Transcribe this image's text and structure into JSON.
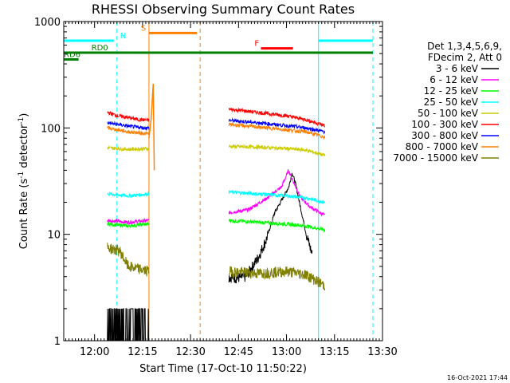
{
  "chart_data": {
    "type": "line",
    "title": "RHESSI Observing Summary Count Rates",
    "xlabel": "Start Time (17-Oct-10 11:50:22)",
    "ylabel_parts": [
      "Count Rate (s",
      "-1",
      " detector",
      "-1",
      ")"
    ],
    "y_scale": "log",
    "ylim": [
      1,
      1000
    ],
    "y_ticks": [
      {
        "value": 1,
        "label": "1"
      },
      {
        "value": 10,
        "label": "10"
      },
      {
        "value": 100,
        "label": "100"
      },
      {
        "value": 1000,
        "label": "1000"
      }
    ],
    "xlim": [
      "11:50:22",
      "13:30:00"
    ],
    "x_ticks": [
      {
        "t": "12:00",
        "label": "12:00"
      },
      {
        "t": "12:15",
        "label": "12:15"
      },
      {
        "t": "12:30",
        "label": "12:30"
      },
      {
        "t": "12:45",
        "label": "12:45"
      },
      {
        "t": "13:00",
        "label": "13:00"
      },
      {
        "t": "13:15",
        "label": "13:15"
      },
      {
        "t": "13:30",
        "label": "13:30"
      }
    ],
    "legend_header": [
      "Det 1,3,4,5,6,9,",
      "FDecim 2, Att 0"
    ],
    "legend_position": "right",
    "series": [
      {
        "name": "3 - 6 keV",
        "color": "#000000",
        "segments": [
          {
            "t0": "12:04",
            "t1": "12:17",
            "points": [
              [
                0,
                2
              ],
              [
                1,
                2
              ]
            ]
          },
          {
            "t0": "12:42",
            "t1": "13:08",
            "points": [
              [
                0,
                4
              ],
              [
                0.1,
                3.9
              ],
              [
                0.2,
                4
              ],
              [
                0.35,
                6
              ],
              [
                0.45,
                9
              ],
              [
                0.55,
                16
              ],
              [
                0.65,
                22
              ],
              [
                0.72,
                28
              ],
              [
                0.76,
                38
              ],
              [
                0.8,
                30
              ],
              [
                0.86,
                18
              ],
              [
                0.93,
                10
              ],
              [
                1,
                6.5
              ]
            ]
          }
        ]
      },
      {
        "name": "6 - 12 keV",
        "color": "#ff00ff",
        "segments": [
          {
            "t0": "12:04",
            "t1": "12:17",
            "points": [
              [
                0,
                13.5
              ],
              [
                0.5,
                13
              ],
              [
                1,
                13.5
              ]
            ]
          },
          {
            "t0": "12:42",
            "t1": "13:12",
            "points": [
              [
                0,
                16
              ],
              [
                0.2,
                17
              ],
              [
                0.4,
                22
              ],
              [
                0.55,
                28
              ],
              [
                0.62,
                40
              ],
              [
                0.68,
                30
              ],
              [
                0.75,
                22
              ],
              [
                0.85,
                18
              ],
              [
                1,
                15
              ]
            ]
          }
        ]
      },
      {
        "name": "12 - 25 keV",
        "color": "#00ff00",
        "segments": [
          {
            "t0": "12:04",
            "t1": "12:17",
            "points": [
              [
                0,
                12.5
              ],
              [
                0.5,
                12
              ],
              [
                1,
                12.5
              ]
            ]
          },
          {
            "t0": "12:42",
            "t1": "13:12",
            "points": [
              [
                0,
                13.5
              ],
              [
                0.3,
                13
              ],
              [
                0.6,
                12.5
              ],
              [
                0.8,
                12
              ],
              [
                1,
                11
              ]
            ]
          }
        ]
      },
      {
        "name": "25 - 50 keV",
        "color": "#00ffff",
        "segments": [
          {
            "t0": "12:04",
            "t1": "12:17",
            "points": [
              [
                0,
                24
              ],
              [
                0.5,
                23
              ],
              [
                1,
                24
              ]
            ]
          },
          {
            "t0": "12:42",
            "t1": "13:12",
            "points": [
              [
                0,
                25
              ],
              [
                0.3,
                24
              ],
              [
                0.6,
                23
              ],
              [
                0.8,
                22
              ],
              [
                1,
                20
              ]
            ]
          }
        ]
      },
      {
        "name": "50 - 100 keV",
        "color": "#cccc00",
        "segments": [
          {
            "t0": "12:04",
            "t1": "12:17",
            "points": [
              [
                0,
                65
              ],
              [
                0.5,
                63
              ],
              [
                1,
                64
              ]
            ]
          },
          {
            "t0": "12:42",
            "t1": "13:12",
            "points": [
              [
                0,
                67
              ],
              [
                0.3,
                66
              ],
              [
                0.6,
                64
              ],
              [
                0.8,
                62
              ],
              [
                1,
                55
              ]
            ]
          }
        ]
      },
      {
        "name": "100 - 300 keV",
        "color": "#ff0000",
        "segments": [
          {
            "t0": "12:04",
            "t1": "12:17",
            "points": [
              [
                0,
                140
              ],
              [
                0.25,
                130
              ],
              [
                0.5,
                125
              ],
              [
                0.75,
                120
              ],
              [
                1,
                118
              ]
            ]
          },
          {
            "t0": "12:42",
            "t1": "13:12",
            "points": [
              [
                0,
                150
              ],
              [
                0.3,
                140
              ],
              [
                0.6,
                130
              ],
              [
                0.8,
                120
              ],
              [
                1,
                105
              ]
            ]
          }
        ]
      },
      {
        "name": "300 - 800 keV",
        "color": "#0000ff",
        "segments": [
          {
            "t0": "12:04",
            "t1": "12:17",
            "points": [
              [
                0,
                112
              ],
              [
                0.25,
                108
              ],
              [
                0.5,
                104
              ],
              [
                0.75,
                101
              ],
              [
                1,
                100
              ]
            ]
          },
          {
            "t0": "12:42",
            "t1": "13:12",
            "points": [
              [
                0,
                118
              ],
              [
                0.3,
                112
              ],
              [
                0.6,
                105
              ],
              [
                0.8,
                100
              ],
              [
                1,
                92
              ]
            ]
          }
        ]
      },
      {
        "name": "800 - 7000 keV",
        "color": "#ff8000",
        "segments": [
          {
            "t0": "12:04",
            "t1": "12:17",
            "points": [
              [
                0,
                100
              ],
              [
                0.25,
                96
              ],
              [
                0.5,
                92
              ],
              [
                0.75,
                90
              ],
              [
                1,
                88
              ]
            ]
          },
          {
            "t0": "12:42",
            "t1": "13:12",
            "points": [
              [
                0,
                108
              ],
              [
                0.3,
                102
              ],
              [
                0.6,
                96
              ],
              [
                0.8,
                92
              ],
              [
                1,
                82
              ]
            ]
          }
        ]
      },
      {
        "name": "7000 - 15000 keV",
        "color": "#808000",
        "segments": [
          {
            "t0": "12:04",
            "t1": "12:17",
            "points": [
              [
                0,
                7.5
              ],
              [
                0.3,
                7
              ],
              [
                0.5,
                5
              ],
              [
                1,
                4.5
              ]
            ]
          },
          {
            "t0": "12:42",
            "t1": "13:12",
            "points": [
              [
                0,
                4.5
              ],
              [
                0.3,
                4.3
              ],
              [
                0.6,
                4.5
              ],
              [
                0.8,
                4.2
              ],
              [
                1,
                3.3
              ]
            ]
          }
        ]
      }
    ],
    "orange_spike": {
      "color": "#ff8000",
      "points": [
        [
          "12:17",
          80
        ],
        [
          "12:17:40",
          120
        ],
        [
          "12:18:20",
          260
        ],
        [
          "12:18:40",
          40
        ]
      ]
    },
    "vertical_lines": [
      {
        "t": "11:50:22",
        "color": "#00ffff",
        "style": "solid"
      },
      {
        "t": "12:07",
        "color": "#00ffff",
        "style": "dashed"
      },
      {
        "t": "12:17",
        "color": "#ff8000",
        "style": "solid"
      },
      {
        "t": "12:33",
        "color": "#ff8000",
        "style": "dashed"
      },
      {
        "t": "13:10",
        "color": "#00ffff",
        "style": "solid"
      },
      {
        "t": "13:27",
        "color": "#00ffff",
        "style": "dashed"
      }
    ],
    "flag_bars": [
      {
        "label": "N",
        "color": "#00ffff",
        "t0": "11:50:22",
        "t1": "12:06",
        "level": 660,
        "label_t": "12:08"
      },
      {
        "label": "",
        "color": "#00ffff",
        "t0": "13:10",
        "t1": "13:27",
        "level": 660,
        "label_t": ""
      },
      {
        "label": "S",
        "color": "#ff8000",
        "t0": "12:17",
        "t1": "12:32",
        "level": 780,
        "label_t": "12:14:30"
      },
      {
        "label": "F",
        "color": "#ff0000",
        "t0": "12:52",
        "t1": "13:02",
        "level": 560,
        "label_t": "12:50"
      },
      {
        "label": "RD0",
        "color": "#008000",
        "t0": "11:50:22",
        "t1": "13:27",
        "level": 510,
        "label_t": "11:59"
      },
      {
        "label": "RD6",
        "color": "#008000",
        "t0": "11:50:22",
        "t1": "11:55",
        "level": 440,
        "label_t": "11:50:22"
      }
    ],
    "timestamp": "16-Oct-2021 17:44"
  }
}
